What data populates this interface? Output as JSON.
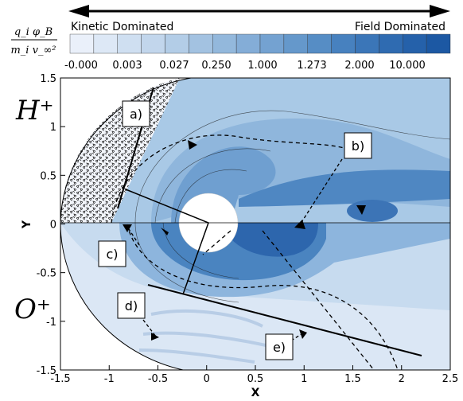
{
  "figure": {
    "colorbar": {
      "formula_numerator": "q_i φ_B",
      "formula_denominator": "m_i v_∞²",
      "left_label": "Kinetic Dominated",
      "right_label": "Field Dominated",
      "tick_labels": [
        "-0.000",
        "0.003",
        "0.027",
        "0.250",
        "1.000",
        "1.273",
        "2.000",
        "10.000"
      ],
      "colors": [
        "#eaf0fa",
        "#dde8f6",
        "#cfdff1",
        "#c2d6ec",
        "#b3cde7",
        "#a3c2e1",
        "#93b8dc",
        "#84add7",
        "#74a2d1",
        "#6598cb",
        "#568dc5",
        "#4781bf",
        "#3b76b8",
        "#2f6bb1",
        "#2561aa",
        "#1c58a3"
      ]
    },
    "upper_species": "H⁺",
    "lower_species": "O⁺",
    "panel_labels": [
      "a)",
      "b)",
      "c)",
      "d)",
      "e)"
    ]
  },
  "chart_data": {
    "type": "heatmap",
    "xlabel": "X",
    "ylabel": "Y",
    "xlim": [
      -1.5,
      2.5
    ],
    "ylim": [
      -1.5,
      1.5
    ],
    "x_ticks": [
      "-1.5",
      "-1",
      "-0.5",
      "0",
      "0.5",
      "1",
      "1.5",
      "2",
      "2.5"
    ],
    "y_ticks": [
      "1.5",
      "1",
      "0.5",
      "0",
      "-0.5",
      "-1",
      "-1.5"
    ],
    "grid": false,
    "planet": {
      "center": [
        0,
        0
      ],
      "radius": 0.3
    }
  }
}
